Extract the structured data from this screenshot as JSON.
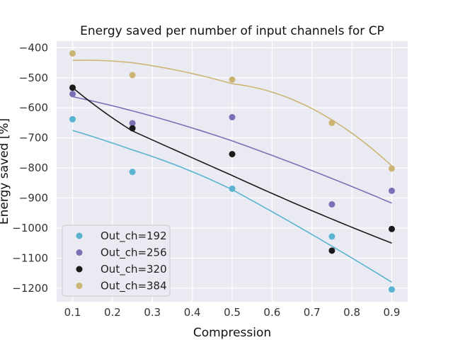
{
  "chart_data": {
    "type": "scatter",
    "title": "Energy saved per number of input channels for CP",
    "xlabel": "Compression",
    "ylabel": "Energy saved [%]",
    "xlim": [
      0.06,
      0.94
    ],
    "ylim": [
      -1245,
      -378
    ],
    "x_ticks": [
      0.1,
      0.2,
      0.3,
      0.4,
      0.5,
      0.6,
      0.7,
      0.8,
      0.9
    ],
    "y_ticks": [
      -400,
      -500,
      -600,
      -700,
      -800,
      -900,
      -1000,
      -1100,
      -1200
    ],
    "grid": true,
    "legend_position": "lower-left",
    "x": [
      0.1,
      0.25,
      0.5,
      0.75,
      0.9
    ],
    "series": [
      {
        "name": "Out_ch=192",
        "color": "#5ab4d0",
        "values": [
          -638,
          -813,
          -869,
          -1028,
          -1204
        ],
        "fit": [
          [
            0.1,
            -675
          ],
          [
            0.25,
            -740
          ],
          [
            0.5,
            -872
          ],
          [
            0.75,
            -1060
          ],
          [
            0.9,
            -1180
          ]
        ]
      },
      {
        "name": "Out_ch=256",
        "color": "#7a70b6",
        "values": [
          -554,
          -651,
          -631,
          -921,
          -876
        ],
        "fit": [
          [
            0.1,
            -563
          ],
          [
            0.25,
            -610
          ],
          [
            0.5,
            -710
          ],
          [
            0.75,
            -835
          ],
          [
            0.9,
            -917
          ]
        ]
      },
      {
        "name": "Out_ch=320",
        "color": "#1a1a1a",
        "values": [
          -533,
          -668,
          -754,
          -1075,
          -1003
        ],
        "fit": [
          [
            0.1,
            -533
          ],
          [
            0.25,
            -677
          ],
          [
            0.5,
            -825
          ],
          [
            0.75,
            -970
          ],
          [
            0.9,
            -1050
          ]
        ]
      },
      {
        "name": "Out_ch=384",
        "color": "#ccb574",
        "values": [
          -419,
          -491,
          -506,
          -650,
          -802
        ],
        "fit": [
          [
            0.1,
            -442
          ],
          [
            0.25,
            -450
          ],
          [
            0.5,
            -520
          ],
          [
            0.75,
            -640
          ],
          [
            0.9,
            -793
          ]
        ]
      }
    ]
  }
}
